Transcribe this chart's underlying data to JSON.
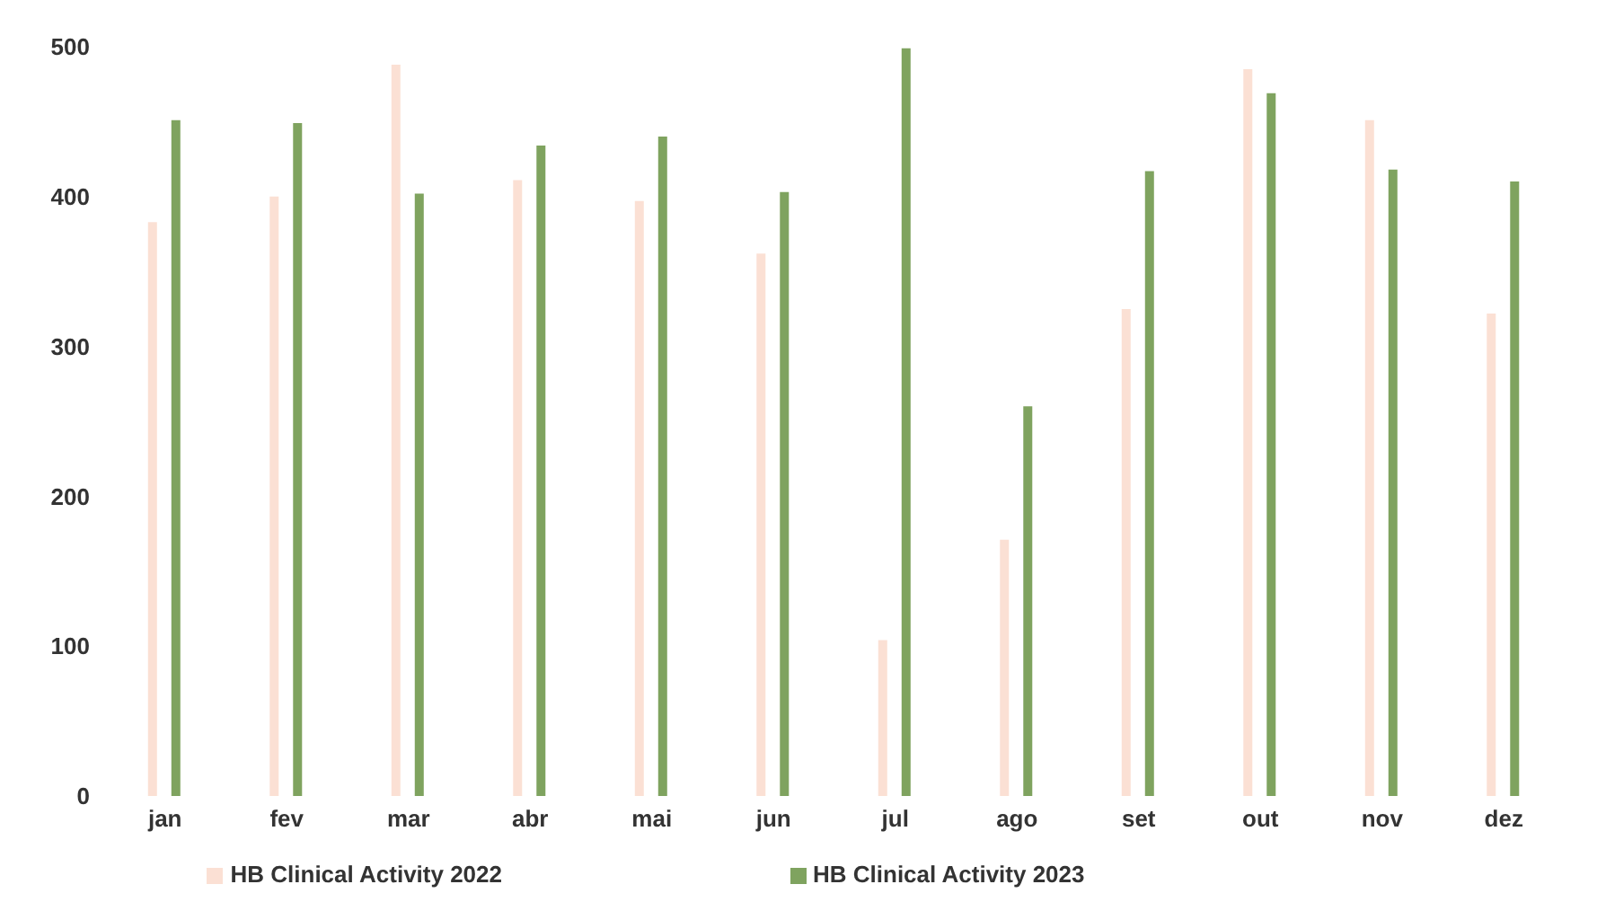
{
  "chart_data": {
    "type": "bar",
    "categories": [
      "jan",
      "fev",
      "mar",
      "abr",
      "mai",
      "jun",
      "jul",
      "ago",
      "set",
      "out",
      "nov",
      "dez"
    ],
    "series": [
      {
        "name": "HB Clinical Activity 2022",
        "color": "#fbe0d4",
        "values": [
          383,
          400,
          488,
          411,
          397,
          362,
          104,
          171,
          325,
          485,
          451,
          322
        ]
      },
      {
        "name": "HB Clinical Activity 2023",
        "color": "#7fa35f",
        "values": [
          451,
          449,
          402,
          434,
          440,
          403,
          499,
          260,
          417,
          469,
          418,
          410
        ]
      }
    ],
    "ylim": [
      0,
      500
    ],
    "yticks": [
      0,
      100,
      200,
      300,
      400,
      500
    ],
    "grid": false,
    "legend": "bottom"
  }
}
